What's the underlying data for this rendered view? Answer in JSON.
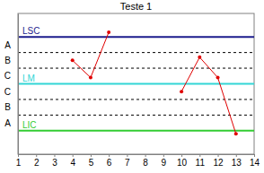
{
  "chart_data": {
    "type": "line",
    "title": "Teste 1",
    "x": [
      4,
      5,
      6,
      7,
      8,
      9,
      10,
      11,
      12,
      13
    ],
    "series": [
      {
        "color": "#e00000",
        "marker": "circle",
        "values": [
          1.5,
          0.4,
          3.3,
          null,
          null,
          null,
          -0.5,
          1.7,
          0.4,
          -3.2
        ]
      }
    ],
    "xlim": [
      1,
      14
    ],
    "xticks": [
      1,
      2,
      3,
      4,
      5,
      6,
      7,
      8,
      9,
      10,
      11,
      12,
      13,
      14
    ],
    "ylim": [
      -4.5,
      4.5
    ],
    "yticks": [
      {
        "value": 2.5,
        "label": "A"
      },
      {
        "value": 1.5,
        "label": "B"
      },
      {
        "value": 0.5,
        "label": "C"
      },
      {
        "value": -0.5,
        "label": "C"
      },
      {
        "value": -1.5,
        "label": "B"
      },
      {
        "value": -2.5,
        "label": "A"
      }
    ],
    "reference_lines": [
      {
        "value": 3,
        "label": "LSC",
        "color": "#1c1c8c"
      },
      {
        "value": 0,
        "label": "LM",
        "color": "#33d6d6"
      },
      {
        "value": -3,
        "label": "LIC",
        "color": "#33cc33"
      }
    ],
    "zone_lines": [
      2,
      1,
      -1,
      -2
    ],
    "grid": false
  }
}
